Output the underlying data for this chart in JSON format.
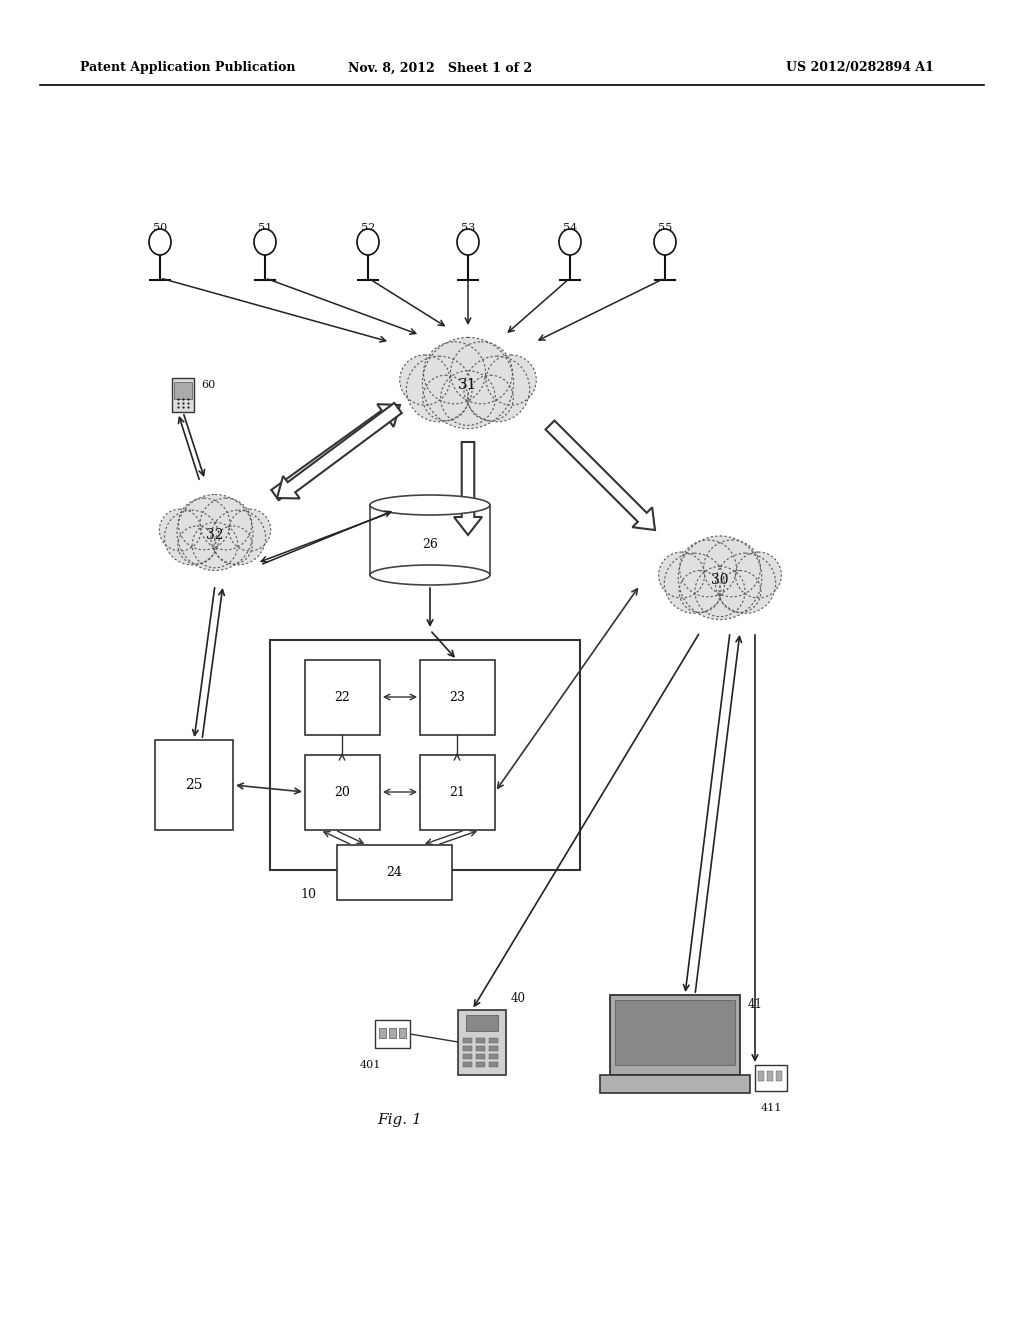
{
  "title_left": "Patent Application Publication",
  "title_mid": "Nov. 8, 2012   Sheet 1 of 2",
  "title_right": "US 2012/0282894 A1",
  "fig_label": "Fig. 1",
  "bg_color": "#ffffff"
}
